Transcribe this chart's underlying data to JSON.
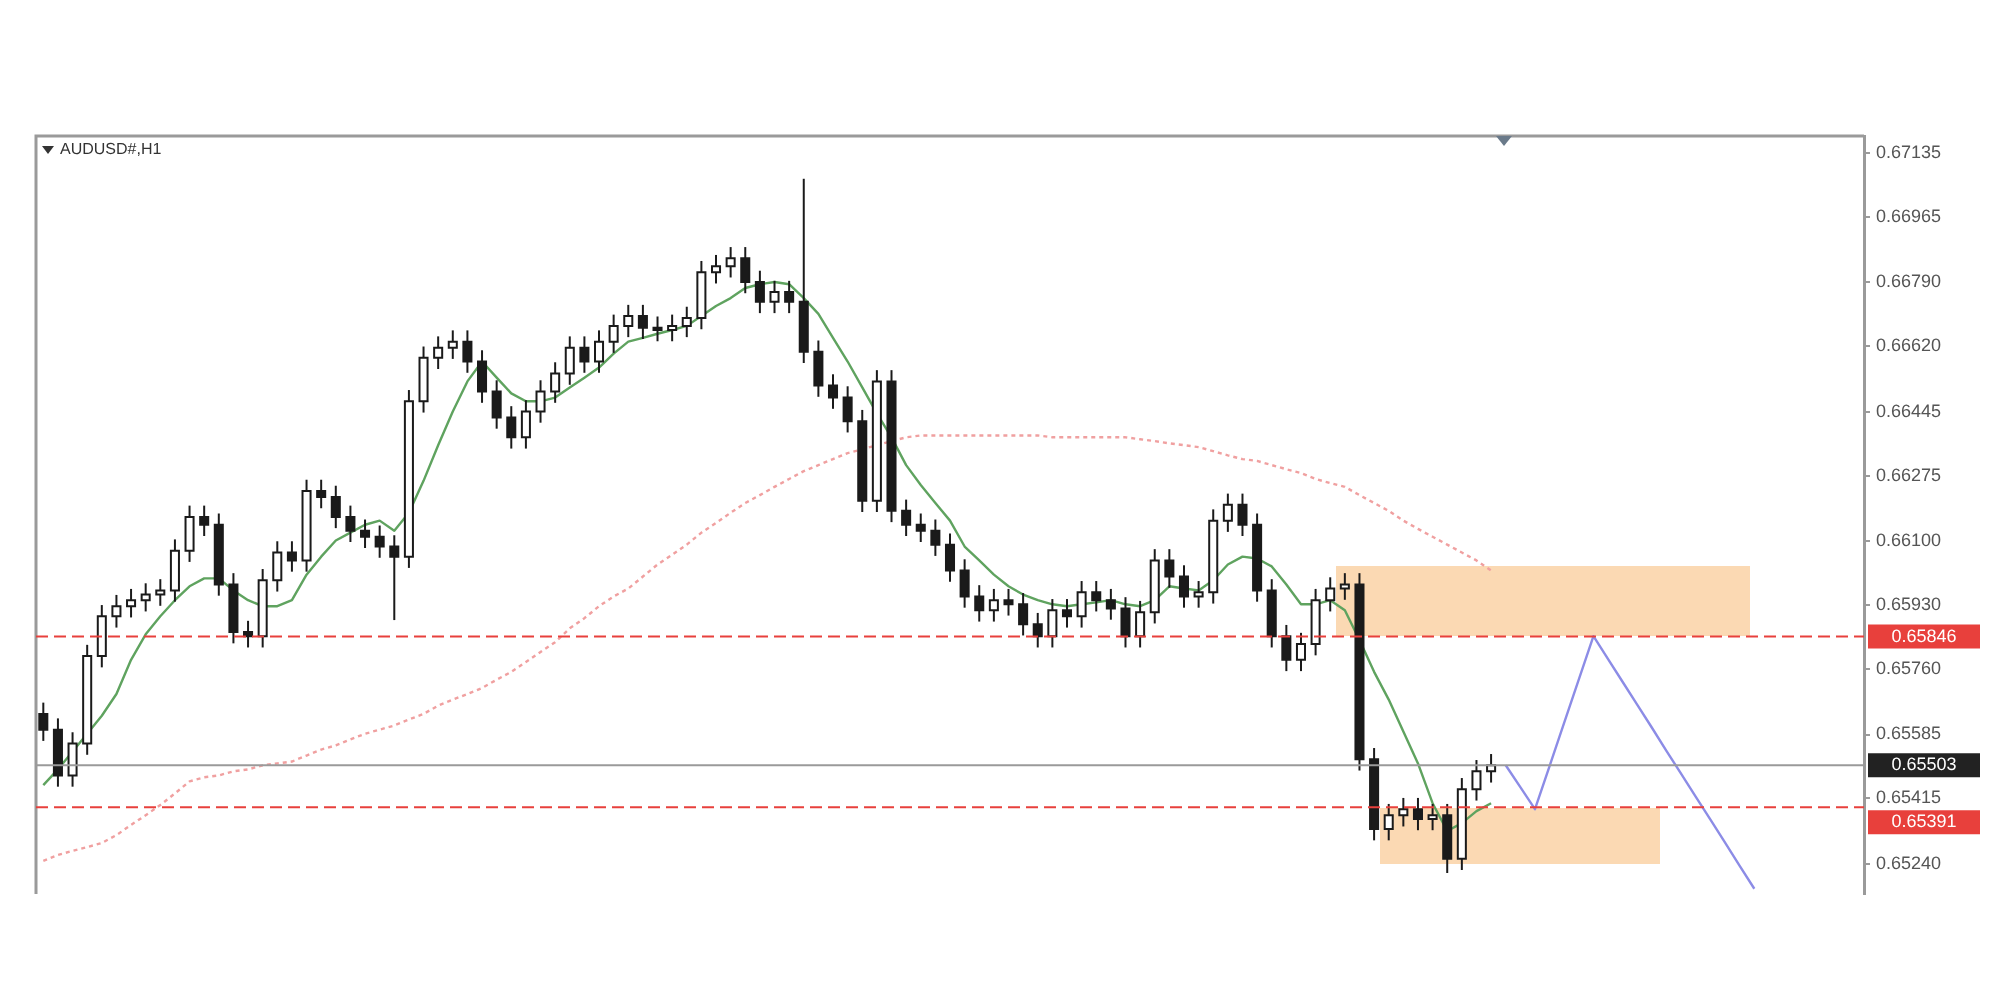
{
  "chart_data": {
    "type": "candlestick",
    "title": "AUDUSD#,H1",
    "tick_labels": "y",
    "marker": "none",
    "categories": [
      null,
      null,
      null,
      null,
      null,
      null,
      null,
      null,
      null,
      null,
      null,
      null,
      null,
      null,
      null,
      null,
      null,
      null,
      null,
      null,
      null,
      null,
      null,
      null,
      null,
      null,
      null,
      null,
      null,
      null,
      null,
      null,
      null,
      null,
      null,
      null,
      null,
      null,
      null,
      null,
      null,
      null,
      null,
      null,
      null,
      null,
      null,
      null,
      null,
      null,
      null,
      null,
      null,
      null,
      null,
      null,
      null,
      null,
      null,
      null,
      null,
      null,
      null,
      null,
      null,
      null,
      null,
      null,
      null,
      null,
      null,
      null,
      null,
      null,
      null,
      null,
      null,
      null,
      null,
      null,
      null,
      null,
      null,
      null,
      null,
      null,
      null,
      null,
      null,
      null,
      null,
      null,
      null,
      null,
      null,
      null,
      null,
      null,
      null,
      null,
      null,
      null,
      null,
      null,
      null,
      null,
      null,
      null,
      null,
      null,
      null,
      null,
      null,
      null,
      null,
      null,
      null,
      null,
      null,
      null,
      null,
      null,
      null,
      null,
      null
    ],
    "ohlc": [
      [
        0.6564,
        0.6567,
        0.65568,
        0.65598
      ],
      [
        0.65598,
        0.65628,
        0.65446,
        0.65476
      ],
      [
        0.65476,
        0.65591,
        0.65446,
        0.65561
      ],
      [
        0.65561,
        0.65824,
        0.65531,
        0.65794
      ],
      [
        0.65794,
        0.6593,
        0.65764,
        0.659
      ],
      [
        0.659,
        0.65957,
        0.6587,
        0.65927
      ],
      [
        0.65927,
        0.65973,
        0.65897,
        0.65943
      ],
      [
        0.65943,
        0.65988,
        0.65913,
        0.65958
      ],
      [
        0.65958,
        0.65999,
        0.65928,
        0.65969
      ],
      [
        0.65969,
        0.66105,
        0.65939,
        0.66075
      ],
      [
        0.66075,
        0.66195,
        0.66045,
        0.66165
      ],
      [
        0.66165,
        0.66195,
        0.66114,
        0.66144
      ],
      [
        0.66144,
        0.66174,
        0.65955,
        0.65985
      ],
      [
        0.65985,
        0.66015,
        0.65828,
        0.65858
      ],
      [
        0.65858,
        0.65888,
        0.65817,
        0.65847
      ],
      [
        0.65847,
        0.66026,
        0.65817,
        0.65996
      ],
      [
        0.65996,
        0.661,
        0.65966,
        0.6607
      ],
      [
        0.6607,
        0.661,
        0.66019,
        0.66049
      ],
      [
        0.66049,
        0.66264,
        0.66019,
        0.66234
      ],
      [
        0.66234,
        0.66264,
        0.66188,
        0.66218
      ],
      [
        0.66218,
        0.66248,
        0.66135,
        0.66165
      ],
      [
        0.66165,
        0.66195,
        0.66098,
        0.66128
      ],
      [
        0.66128,
        0.66158,
        0.66082,
        0.66112
      ],
      [
        0.66112,
        0.66142,
        0.66056,
        0.66086
      ],
      [
        0.66086,
        0.66116,
        0.6589,
        0.66059
      ],
      [
        0.66059,
        0.66503,
        0.66029,
        0.66473
      ],
      [
        0.66473,
        0.66619,
        0.66443,
        0.66589
      ],
      [
        0.66589,
        0.66646,
        0.66559,
        0.66616
      ],
      [
        0.66616,
        0.66662,
        0.66586,
        0.66632
      ],
      [
        0.66632,
        0.66662,
        0.66549,
        0.66579
      ],
      [
        0.66579,
        0.66609,
        0.66469,
        0.66499
      ],
      [
        0.66499,
        0.66529,
        0.664,
        0.6643
      ],
      [
        0.6643,
        0.6646,
        0.66347,
        0.66377
      ],
      [
        0.66377,
        0.66476,
        0.66347,
        0.66446
      ],
      [
        0.66446,
        0.66529,
        0.66416,
        0.66499
      ],
      [
        0.66499,
        0.66577,
        0.66469,
        0.66547
      ],
      [
        0.66547,
        0.66646,
        0.66517,
        0.66616
      ],
      [
        0.66616,
        0.66646,
        0.66549,
        0.66579
      ],
      [
        0.66579,
        0.66662,
        0.66549,
        0.66632
      ],
      [
        0.66632,
        0.66704,
        0.66602,
        0.66674
      ],
      [
        0.66674,
        0.6673,
        0.66644,
        0.667
      ],
      [
        0.667,
        0.6673,
        0.66639,
        0.66669
      ],
      [
        0.66669,
        0.66699,
        0.66633,
        0.66663
      ],
      [
        0.66663,
        0.66704,
        0.66633,
        0.66674
      ],
      [
        0.66674,
        0.66725,
        0.66644,
        0.66695
      ],
      [
        0.66695,
        0.66847,
        0.66665,
        0.66817
      ],
      [
        0.66817,
        0.66863,
        0.66787,
        0.66833
      ],
      [
        0.66833,
        0.66884,
        0.66803,
        0.66854
      ],
      [
        0.66854,
        0.66884,
        0.66761,
        0.66791
      ],
      [
        0.66791,
        0.66821,
        0.66708,
        0.66738
      ],
      [
        0.66738,
        0.66794,
        0.66708,
        0.66764
      ],
      [
        0.66764,
        0.66794,
        0.66708,
        0.66738
      ],
      [
        0.66738,
        0.67066,
        0.66575,
        0.66605
      ],
      [
        0.66605,
        0.66635,
        0.66485,
        0.66515
      ],
      [
        0.66515,
        0.66545,
        0.66453,
        0.66483
      ],
      [
        0.66483,
        0.66513,
        0.6639,
        0.6642
      ],
      [
        0.6642,
        0.6645,
        0.66178,
        0.66208
      ],
      [
        0.66208,
        0.66556,
        0.66178,
        0.66526
      ],
      [
        0.66526,
        0.66556,
        0.66151,
        0.66181
      ],
      [
        0.66181,
        0.66211,
        0.66114,
        0.66144
      ],
      [
        0.66144,
        0.66174,
        0.66098,
        0.66128
      ],
      [
        0.66128,
        0.66158,
        0.66061,
        0.66091
      ],
      [
        0.66091,
        0.66121,
        0.65992,
        0.66022
      ],
      [
        0.66022,
        0.66052,
        0.65923,
        0.65953
      ],
      [
        0.65953,
        0.65983,
        0.65886,
        0.65916
      ],
      [
        0.65916,
        0.65973,
        0.65886,
        0.65943
      ],
      [
        0.65943,
        0.65973,
        0.65902,
        0.65932
      ],
      [
        0.65932,
        0.65962,
        0.65849,
        0.65879
      ],
      [
        0.65879,
        0.65909,
        0.65817,
        0.65847
      ],
      [
        0.65847,
        0.65946,
        0.65817,
        0.65916
      ],
      [
        0.65916,
        0.65946,
        0.6587,
        0.659
      ],
      [
        0.659,
        0.65994,
        0.6587,
        0.65964
      ],
      [
        0.65964,
        0.65994,
        0.65913,
        0.65943
      ],
      [
        0.65943,
        0.65973,
        0.65891,
        0.65921
      ],
      [
        0.65921,
        0.65951,
        0.65817,
        0.65847
      ],
      [
        0.65847,
        0.65941,
        0.65817,
        0.65911
      ],
      [
        0.65911,
        0.66079,
        0.65881,
        0.66049
      ],
      [
        0.66049,
        0.66079,
        0.65976,
        0.66006
      ],
      [
        0.66006,
        0.66036,
        0.65923,
        0.65953
      ],
      [
        0.65953,
        0.65994,
        0.65923,
        0.65964
      ],
      [
        0.65964,
        0.66185,
        0.65934,
        0.66155
      ],
      [
        0.66155,
        0.66227,
        0.66125,
        0.66197
      ],
      [
        0.66197,
        0.66227,
        0.66114,
        0.66144
      ],
      [
        0.66144,
        0.66174,
        0.65939,
        0.65969
      ],
      [
        0.65969,
        0.65999,
        0.65817,
        0.65847
      ],
      [
        0.65847,
        0.65877,
        0.65754,
        0.65784
      ],
      [
        0.65784,
        0.65856,
        0.65754,
        0.65826
      ],
      [
        0.65826,
        0.65973,
        0.65796,
        0.65943
      ],
      [
        0.65943,
        0.66004,
        0.65913,
        0.65974
      ],
      [
        0.65974,
        0.66015,
        0.65944,
        0.65985
      ],
      [
        0.65985,
        0.66015,
        0.65489,
        0.65519
      ],
      [
        0.65519,
        0.65549,
        0.65303,
        0.65333
      ],
      [
        0.65333,
        0.654,
        0.65303,
        0.6537
      ],
      [
        0.6537,
        0.65416,
        0.6534,
        0.65386
      ],
      [
        0.65386,
        0.65416,
        0.6533,
        0.6536
      ],
      [
        0.6536,
        0.654,
        0.6533,
        0.6537
      ],
      [
        0.6537,
        0.654,
        0.65216,
        0.65254
      ],
      [
        0.65254,
        0.65469,
        0.65224,
        0.65439
      ],
      [
        0.65439,
        0.65517,
        0.65409,
        0.65487
      ],
      [
        0.65487,
        0.65533,
        0.65457,
        0.65503
      ],
      null,
      null,
      null,
      null,
      null,
      null,
      null,
      null,
      null,
      null,
      null,
      null,
      null,
      null,
      null,
      null,
      null,
      null,
      null,
      null,
      null,
      null,
      null,
      null,
      null
    ],
    "series": [
      {
        "type": "line",
        "color": "#5fa35f",
        "values": [
          0.6545,
          0.65492,
          0.6554,
          0.65587,
          0.65635,
          0.65693,
          0.65784,
          0.65852,
          0.659,
          0.65943,
          0.6598,
          0.66001,
          0.66001,
          0.65969,
          0.65943,
          0.65927,
          0.65927,
          0.65943,
          0.66011,
          0.66059,
          0.66102,
          0.66123,
          0.66144,
          0.66155,
          0.66128,
          0.66176,
          0.66261,
          0.66356,
          0.66446,
          0.66526,
          0.66579,
          0.66536,
          0.66494,
          0.66473,
          0.66473,
          0.66483,
          0.6651,
          0.66536,
          0.66563,
          0.666,
          0.66632,
          0.66642,
          0.66653,
          0.66663,
          0.66674,
          0.667,
          0.66727,
          0.66748,
          0.66775,
          0.66785,
          0.66791,
          0.66785,
          0.66748,
          0.66706,
          0.66642,
          0.66579,
          0.6651,
          0.66441,
          0.66377,
          0.66303,
          0.6625,
          0.66202,
          0.66155,
          0.66086,
          0.66049,
          0.66011,
          0.6598,
          0.65958,
          0.65943,
          0.65932,
          0.65927,
          0.65932,
          0.65937,
          0.65943,
          0.65932,
          0.65927,
          0.65943,
          0.6598,
          0.65974,
          0.65969,
          0.65996,
          0.66038,
          0.66059,
          0.66054,
          0.66033,
          0.65985,
          0.65932,
          0.65932,
          0.65943,
          0.65916,
          0.65837,
          0.65752,
          0.65678,
          0.65593,
          0.65508,
          0.65402,
          0.65328,
          0.65349,
          0.65381,
          0.65402,
          null,
          null,
          null,
          null,
          null,
          null,
          null,
          null,
          null,
          null,
          null,
          null,
          null,
          null,
          null,
          null,
          null,
          null,
          null,
          null,
          null,
          null,
          null,
          null,
          null
        ]
      },
      {
        "type": "line",
        "color": "#f0a0a0",
        "line_style": "dotted",
        "values": [
          0.65248,
          0.65264,
          0.65275,
          0.65285,
          0.65296,
          0.65317,
          0.65344,
          0.6537,
          0.65397,
          0.65428,
          0.6546,
          0.65471,
          0.65476,
          0.65487,
          0.65492,
          0.65503,
          0.65508,
          0.65513,
          0.65529,
          0.65545,
          0.65556,
          0.65572,
          0.65587,
          0.65598,
          0.65609,
          0.65625,
          0.6564,
          0.65662,
          0.65678,
          0.65693,
          0.65709,
          0.65731,
          0.65752,
          0.65778,
          0.65805,
          0.65831,
          0.65868,
          0.65895,
          0.65927,
          0.65953,
          0.65974,
          0.66006,
          0.66038,
          0.66064,
          0.66091,
          0.66123,
          0.66149,
          0.66176,
          0.66202,
          0.66223,
          0.66245,
          0.66266,
          0.66287,
          0.66303,
          0.66319,
          0.66335,
          0.66345,
          0.66356,
          0.66367,
          0.66377,
          0.66382,
          0.66382,
          0.66382,
          0.66382,
          0.66382,
          0.66382,
          0.66382,
          0.66382,
          0.66382,
          0.66377,
          0.66377,
          0.66377,
          0.66377,
          0.66377,
          0.66377,
          0.66372,
          0.66367,
          0.66361,
          0.66356,
          0.66351,
          0.6634,
          0.66329,
          0.66319,
          0.66314,
          0.66303,
          0.66292,
          0.66282,
          0.66266,
          0.66255,
          0.66245,
          0.66223,
          0.66202,
          0.66181,
          0.66155,
          0.66133,
          0.66112,
          0.66091,
          0.6607,
          0.66049,
          0.66022,
          null,
          null,
          null,
          null,
          null,
          null,
          null,
          null,
          null,
          null,
          null,
          null,
          null,
          null,
          null,
          null,
          null,
          null,
          null,
          null,
          null,
          null,
          null,
          null,
          null
        ]
      },
      {
        "type": "line",
        "color": "#8c8ce6",
        "values": [
          null,
          null,
          null,
          null,
          null,
          null,
          null,
          null,
          null,
          null,
          null,
          null,
          null,
          null,
          null,
          null,
          null,
          null,
          null,
          null,
          null,
          null,
          null,
          null,
          null,
          null,
          null,
          null,
          null,
          null,
          null,
          null,
          null,
          null,
          null,
          null,
          null,
          null,
          null,
          null,
          null,
          null,
          null,
          null,
          null,
          null,
          null,
          null,
          null,
          null,
          null,
          null,
          null,
          null,
          null,
          null,
          null,
          null,
          null,
          null,
          null,
          null,
          null,
          null,
          null,
          null,
          null,
          null,
          null,
          null,
          null,
          null,
          null,
          null,
          null,
          null,
          null,
          null,
          null,
          null,
          null,
          null,
          null,
          null,
          null,
          null,
          null,
          null,
          null,
          null,
          null,
          null,
          null,
          null,
          null,
          null,
          null,
          null,
          null,
          null,
          0.65503,
          0.65445,
          0.65386,
          0.65501,
          0.65617,
          0.65732,
          0.65847,
          0.65786,
          0.65725,
          0.65664,
          0.65603,
          0.65541,
          0.6548,
          0.65419,
          0.65358,
          0.65297,
          0.65235,
          0.65174,
          null,
          null,
          null,
          null,
          null,
          null,
          null
        ]
      }
    ],
    "ylim": [
      0.6516,
      0.6718
    ],
    "yticks": [
      {
        "value": 0.6524,
        "label": "0.65240"
      },
      {
        "value": 0.65415,
        "label": "0.65415"
      },
      {
        "value": 0.65585,
        "label": "0.65585"
      },
      {
        "value": 0.6576,
        "label": "0.65760"
      },
      {
        "value": 0.6593,
        "label": "0.65930"
      },
      {
        "value": 0.661,
        "label": "0.66100"
      },
      {
        "value": 0.66275,
        "label": "0.66275"
      },
      {
        "value": 0.66445,
        "label": "0.66445"
      },
      {
        "value": 0.6662,
        "label": "0.66620"
      },
      {
        "value": 0.6679,
        "label": "0.66790"
      },
      {
        "value": 0.66965,
        "label": "0.66965"
      },
      {
        "value": 0.67135,
        "label": "0.67135"
      }
    ],
    "ref_lines": [
      {
        "axis": "y",
        "value": 0.65846,
        "label": "0.65846",
        "color": "#e8403c",
        "line_style": "dashed"
      },
      {
        "axis": "y",
        "value": 0.65503,
        "label": "0.65503",
        "color": "#9a9a9a",
        "line_style": "solid"
      },
      {
        "axis": "y",
        "value": 0.65391,
        "label": "0.65391",
        "color": "#e8403c",
        "line_style": "dashed"
      }
    ]
  }
}
